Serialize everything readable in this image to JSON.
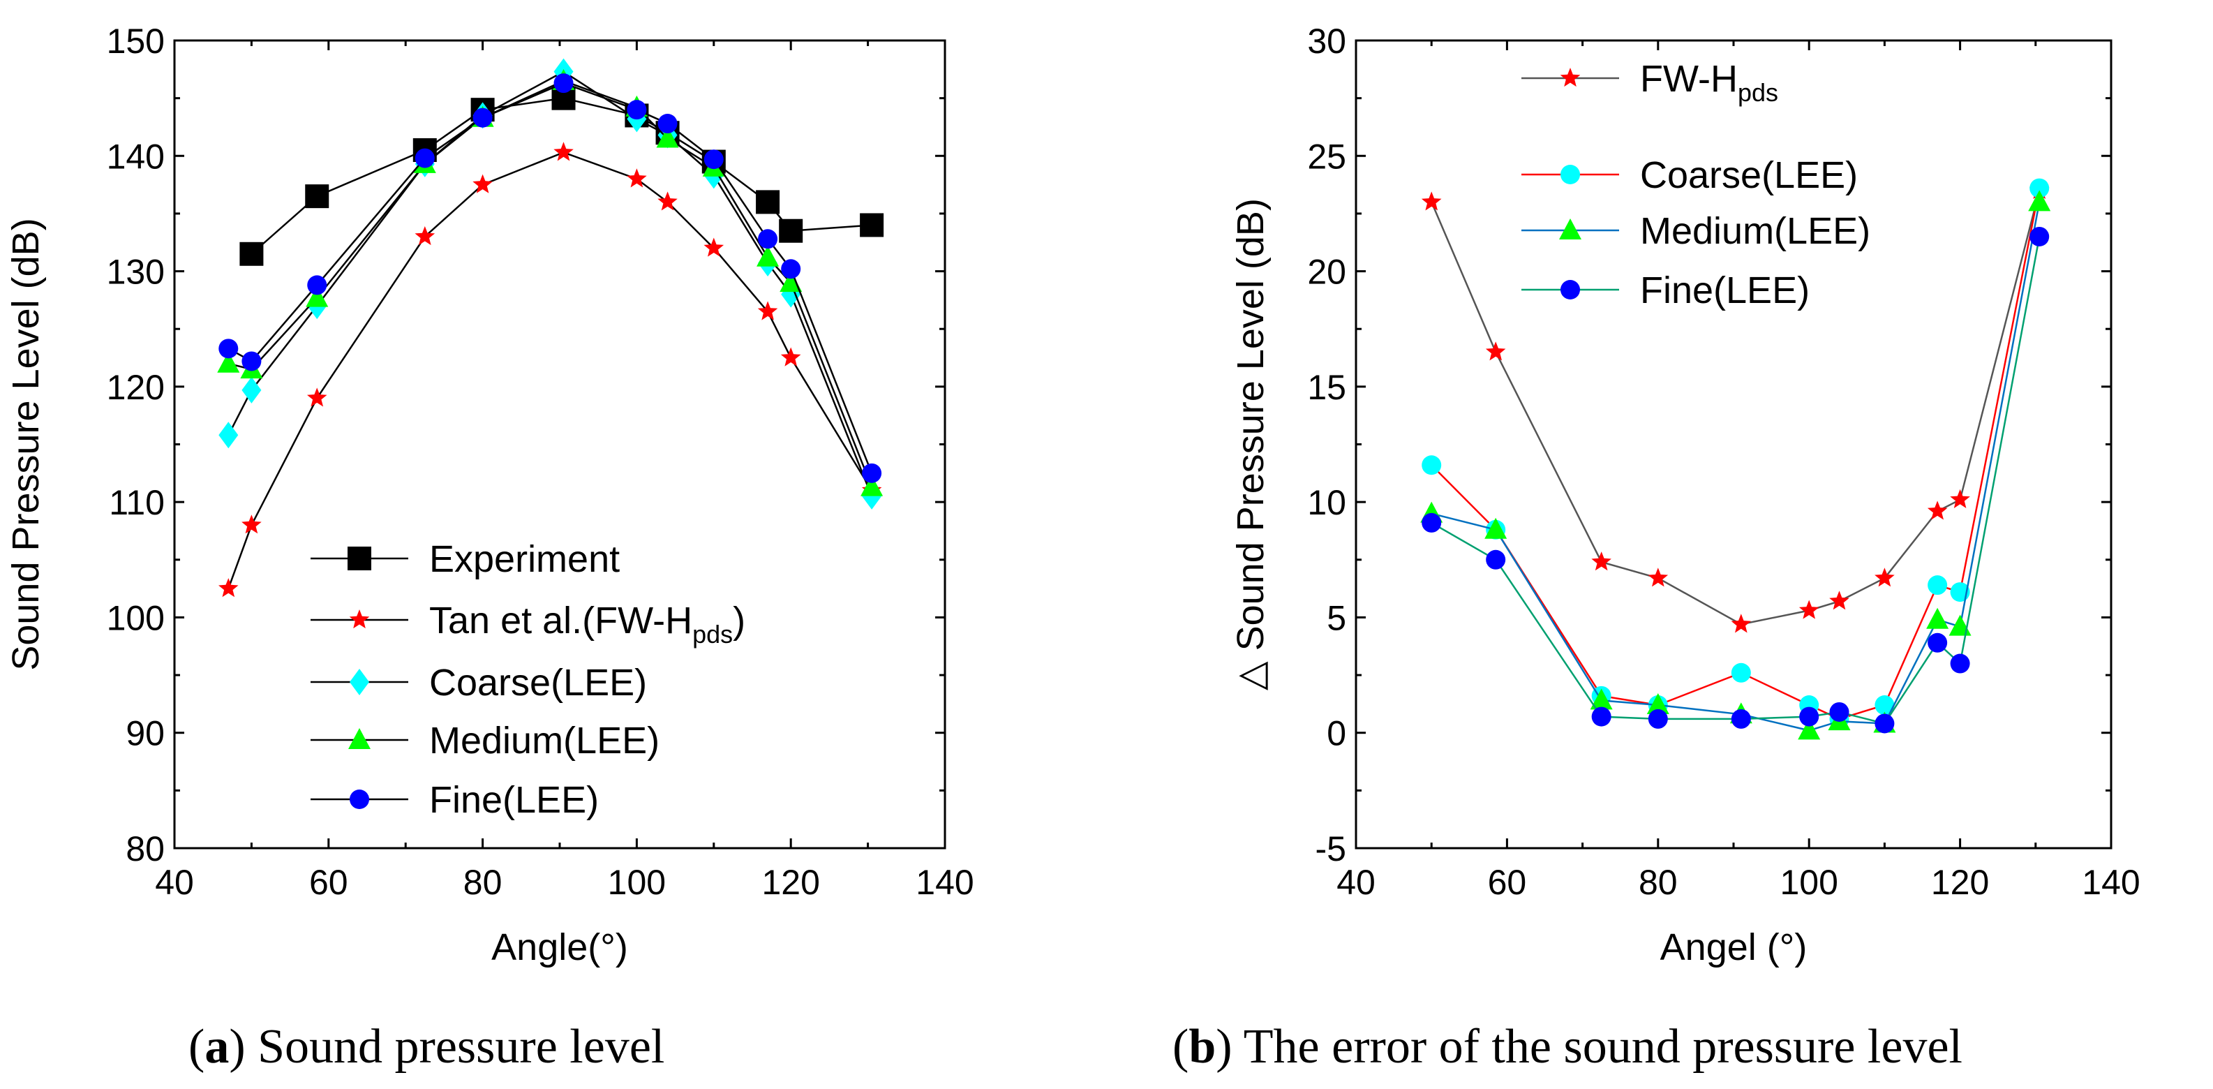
{
  "chart_data": [
    {
      "id": "a",
      "type": "line",
      "caption_prefix": "(",
      "caption_letter": "a",
      "caption_rest": ") Sound pressure level",
      "xlabel": "Angle(°)",
      "ylabel": "Sound Pressure Level (dB)",
      "xlim": [
        40,
        140
      ],
      "ylim": [
        80,
        150
      ],
      "xticks": [
        40,
        60,
        80,
        100,
        120,
        140
      ],
      "yticks": [
        80,
        90,
        100,
        110,
        120,
        130,
        140,
        150
      ],
      "legend_position": "bottom-center",
      "series": [
        {
          "name": "Experiment",
          "label_main": "Experiment",
          "label_sub": "",
          "label_tail": "",
          "marker": "square",
          "color": "#000000",
          "line_color": "#000000",
          "x": [
            50,
            58.5,
            72.5,
            80,
            90.5,
            100,
            104,
            110,
            117,
            120,
            130.5
          ],
          "y": [
            131.5,
            136.5,
            140.5,
            144,
            145,
            143.5,
            142,
            139.5,
            136,
            133.5,
            134
          ]
        },
        {
          "name": "Tan et al.(FW-Hpds)",
          "label_main": "Tan et al.(FW-H",
          "label_sub": "pds",
          "label_tail": ")",
          "marker": "star",
          "color": "#ff0000",
          "line_color": "#000000",
          "x": [
            47,
            50,
            58.5,
            72.5,
            80,
            90.5,
            100,
            104,
            110,
            117,
            120,
            130.5
          ],
          "y": [
            102.5,
            108,
            119,
            133,
            137.5,
            140.3,
            138,
            136,
            132,
            126.5,
            122.5,
            111
          ]
        },
        {
          "name": "Coarse(LEE)",
          "label_main": "Coarse(LEE)",
          "label_sub": "",
          "label_tail": "",
          "marker": "diamond",
          "color": "#00ffff",
          "line_color": "#000000",
          "x": [
            47,
            50,
            58.5,
            72.5,
            80,
            90.5,
            100,
            104,
            110,
            117,
            120,
            130.5
          ],
          "y": [
            115.8,
            119.7,
            127,
            139.3,
            143.5,
            147.3,
            143.2,
            141.8,
            138.3,
            130.7,
            128,
            110.5
          ]
        },
        {
          "name": "Medium(LEE)",
          "label_main": "Medium(LEE)",
          "label_sub": "",
          "label_tail": "",
          "marker": "triangle",
          "color": "#00ff00",
          "line_color": "#000000",
          "x": [
            47,
            50,
            58.5,
            72.5,
            80,
            90.5,
            100,
            104,
            110,
            117,
            120,
            130.5
          ],
          "y": [
            122,
            121.5,
            127.7,
            139.3,
            143.3,
            146.5,
            144.2,
            141.5,
            139,
            131.2,
            129,
            111.3
          ]
        },
        {
          "name": "Fine(LEE)",
          "label_main": "Fine(LEE)",
          "label_sub": "",
          "label_tail": "",
          "marker": "circle",
          "color": "#0000ff",
          "line_color": "#000000",
          "x": [
            47,
            50,
            58.5,
            72.5,
            80,
            90.5,
            100,
            104,
            110,
            117,
            120,
            130.5
          ],
          "y": [
            123.3,
            122.2,
            128.8,
            139.8,
            143.3,
            146.3,
            144,
            142.8,
            139.7,
            132.8,
            130.2,
            112.5
          ]
        }
      ]
    },
    {
      "id": "b",
      "type": "line",
      "caption_prefix": "(",
      "caption_letter": "b",
      "caption_rest": ") The error of the sound pressure level",
      "xlabel": "Angel (°)",
      "ylabel": "△ Sound Pressure Level (dB)",
      "xlim": [
        40,
        140
      ],
      "ylim": [
        -5,
        30
      ],
      "xticks": [
        40,
        60,
        80,
        100,
        120,
        140
      ],
      "yticks": [
        -5,
        0,
        5,
        10,
        15,
        20,
        25,
        30
      ],
      "legend_position": "top-center",
      "series": [
        {
          "name": "FW-Hpds",
          "label_main": "FW-H",
          "label_sub": "pds",
          "label_tail": "",
          "marker": "star",
          "color": "#ff0000",
          "line_color": "#555555",
          "x": [
            50,
            58.5,
            72.5,
            80,
            91,
            100,
            104,
            110,
            117,
            120,
            130.5
          ],
          "y": [
            23,
            16.5,
            7.4,
            6.7,
            4.7,
            5.3,
            5.7,
            6.7,
            9.6,
            10.1,
            23.5
          ]
        },
        {
          "name": "Coarse(LEE)",
          "label_main": "Coarse(LEE)",
          "label_sub": "",
          "label_tail": "",
          "marker": "circle",
          "color": "#00ffff",
          "line_color": "#ff0000",
          "x": [
            50,
            58.5,
            72.5,
            80,
            91,
            100,
            104,
            110,
            117,
            120,
            130.5
          ],
          "y": [
            11.6,
            8.8,
            1.6,
            1.2,
            2.6,
            1.2,
            0.6,
            1.2,
            6.4,
            6.1,
            23.6
          ]
        },
        {
          "name": "Medium(LEE)",
          "label_main": "Medium(LEE)",
          "label_sub": "",
          "label_tail": "",
          "marker": "triangle",
          "color": "#00ff00",
          "line_color": "#0070c0",
          "x": [
            50,
            58.5,
            72.5,
            80,
            91,
            100,
            104,
            110,
            117,
            120,
            130.5
          ],
          "y": [
            9.5,
            8.8,
            1.4,
            1.2,
            0.8,
            0.1,
            0.5,
            0.4,
            4.9,
            4.6,
            23
          ]
        },
        {
          "name": "Fine(LEE)",
          "label_main": "Fine(LEE)",
          "label_sub": "",
          "label_tail": "",
          "marker": "circle",
          "color": "#0000ff",
          "line_color": "#00a070",
          "x": [
            50,
            58.5,
            72.5,
            80,
            91,
            100,
            104,
            110,
            117,
            120,
            130.5
          ],
          "y": [
            9.1,
            7.5,
            0.7,
            0.6,
            0.6,
            0.7,
            0.9,
            0.4,
            3.9,
            3.0,
            21.5
          ]
        }
      ]
    }
  ]
}
